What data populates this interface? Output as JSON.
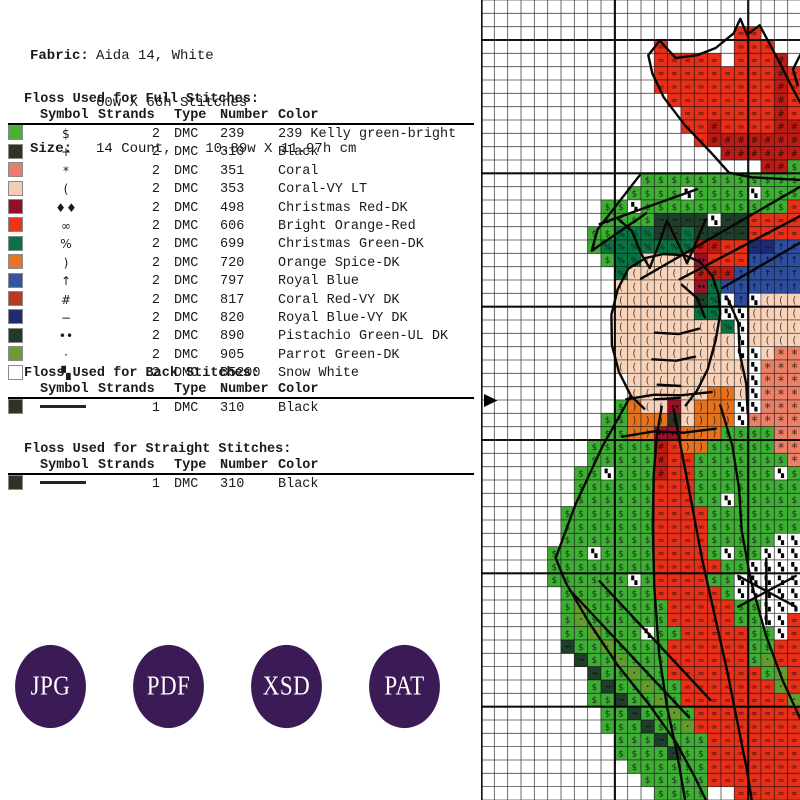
{
  "fabric": {
    "label": "Fabric:",
    "value1": "Aida 14, White",
    "value2": "60w X 66h Stitches",
    "size_label": "Size:",
    "size_value": "14 Count,    10.89w X 11.97h cm"
  },
  "full_stitches": {
    "title": "Floss Used for Full Stitches:",
    "headers": [
      "Symbol",
      "Strands",
      "Type",
      "Number",
      "Color"
    ],
    "rows": [
      {
        "swatch": "#4caf32",
        "symbol": "$",
        "strands": "2",
        "type": "DMC",
        "number": "239",
        "color": "239 Kelly green-bright"
      },
      {
        "swatch": "#2d3424",
        "symbol": "+",
        "strands": "2",
        "type": "DMC",
        "number": "310",
        "color": "Black"
      },
      {
        "swatch": "#e87f6d",
        "symbol": "*",
        "strands": "2",
        "type": "DMC",
        "number": "351",
        "color": "Coral"
      },
      {
        "swatch": "#f6cdb4",
        "symbol": "(",
        "strands": "2",
        "type": "DMC",
        "number": "353",
        "color": "Coral-VY LT"
      },
      {
        "swatch": "#8f1029",
        "symbol": "♦♦",
        "strands": "2",
        "type": "DMC",
        "number": "498",
        "color": "Christmas Red-DK"
      },
      {
        "swatch": "#e8351c",
        "symbol": "∞",
        "strands": "2",
        "type": "DMC",
        "number": "606",
        "color": "Bright Orange-Red"
      },
      {
        "swatch": "#0a7346",
        "symbol": "%",
        "strands": "2",
        "type": "DMC",
        "number": "699",
        "color": "Christmas Green-DK"
      },
      {
        "swatch": "#e2752c",
        "symbol": ")",
        "strands": "2",
        "type": "DMC",
        "number": "720",
        "color": "Orange Spice-DK"
      },
      {
        "swatch": "#36549f",
        "symbol": "↑",
        "strands": "2",
        "type": "DMC",
        "number": "797",
        "color": "Royal Blue"
      },
      {
        "swatch": "#bb3a24",
        "symbol": "#",
        "strands": "2",
        "type": "DMC",
        "number": "817",
        "color": "Coral Red-VY DK"
      },
      {
        "swatch": "#222a72",
        "symbol": "−",
        "strands": "2",
        "type": "DMC",
        "number": "820",
        "color": "Royal Blue-VY DK"
      },
      {
        "swatch": "#1d3b26",
        "symbol": "••",
        "strands": "2",
        "type": "DMC",
        "number": "890",
        "color": "Pistachio Green-UL DK"
      },
      {
        "swatch": "#6a9e35",
        "symbol": "·",
        "strands": "2",
        "type": "DMC",
        "number": "905",
        "color": "Parrot Green-DK"
      },
      {
        "swatch": "#ffffff",
        "symbol": "▚",
        "strands": "2",
        "type": "DMC",
        "number": "B5200",
        "color": "Snow White"
      }
    ]
  },
  "back_stitches": {
    "title": "Floss Used for Back Stitches:",
    "headers": [
      "Symbol",
      "Strands",
      "Type",
      "Number",
      "Color"
    ],
    "rows": [
      {
        "swatch": "#2d3424",
        "symbol": "backstitch-line",
        "strands": "1",
        "type": "DMC",
        "number": "310",
        "color": "Black"
      }
    ]
  },
  "straight_stitches": {
    "title": "Floss Used for Straight Stitches:",
    "headers": [
      "Symbol",
      "Strands",
      "Type",
      "Number",
      "Color"
    ],
    "rows": [
      {
        "swatch": "#2d3424",
        "symbol": "backstitch-line",
        "strands": "1",
        "type": "DMC",
        "number": "310",
        "color": "Black"
      }
    ]
  },
  "buttons": [
    {
      "label": "JPG"
    },
    {
      "label": "PDF"
    },
    {
      "label": "XSD"
    },
    {
      "label": "PAT"
    }
  ],
  "accent_color": "#3a1b55",
  "chart": {
    "palette": {
      "K": {
        "hex": "#3fae35",
        "symbol": "$",
        "floss": "239"
      },
      "B": {
        "hex": "#2d3424",
        "symbol": "+",
        "floss": "310"
      },
      "C": {
        "hex": "#ec8168",
        "symbol": "*",
        "floss": "351"
      },
      "L": {
        "hex": "#f8d2b9",
        "symbol": "(",
        "floss": "353"
      },
      "R": {
        "hex": "#991129",
        "symbol": "♦♦",
        "floss": "498"
      },
      "O": {
        "hex": "#e73019",
        "symbol": "∞",
        "floss": "606"
      },
      "G": {
        "hex": "#0a7343",
        "symbol": "%",
        "floss": "699"
      },
      "S": {
        "hex": "#e4721f",
        "symbol": ")",
        "floss": "720"
      },
      "U": {
        "hex": "#2d4d9e",
        "symbol": "↑",
        "floss": "797"
      },
      "H": {
        "hex": "#bc1c13",
        "symbol": "#",
        "floss": "817"
      },
      "D": {
        "hex": "#1d2b77",
        "symbol": "−",
        "floss": "820"
      },
      "P": {
        "hex": "#1e3e2a",
        "symbol": "••",
        "floss": "890"
      },
      "V": {
        "hex": "#639c2e",
        "symbol": "·",
        "floss": "905"
      },
      "W": {
        "hex": "#ffffff",
        "symbol": "▚",
        "floss": "B5200"
      }
    },
    "grid": [
      "........................",
      "........................",
      "...................OO...",
      ".............O.....OOO..",
      ".............OOOOO.OOOH.",
      ".............OOOOOOOOOHO",
      ".............OOOOOOOOOHO",
      "..............OOOOOOOOHO",
      "...............OOOOOOOHO",
      "...............OOHOOOOHH",
      "................OHHHHHHH",
      "..................HHHHHH",
      ".....................HHK",
      "............KKKKKKKKKKKK",
      "...........KKKKWKKKKWKKK",
      ".........KKWKKKKKKKKKKKO",
      ".........KKKKPPPPWPPOOOO",
      "........KKGGGPPGPPPPOOOO",
      "........KGGGGGGGHHOODDUU",
      ".........KGGLLLLROOOUUUU",
      "..........GLLLLLHHHUUUUU",
      "..........LLLLLLRGUUUUUU",
      "..........LLLLLLPGWUWLLL",
      "..........LLLLLLGGWWLLLL",
      "..........LLLLLLLLGWLLLL",
      "..........LLLLLLLLLWLLLL",
      "..........LLLLLLLLLWWLCC",
      "..........LLLLLLLLLLWCCC",
      "...........LLLLLLLLLWCCC",
      "...........LLLLLLSSLWCCC",
      "..........KSLLRLSSSWWCCC",
      ".........KKSSSBLSSSWCCCC",
      ".........KKSSRRSSSKKKKCC",
      "........KKKKKHOSSKKKKKCC",
      "........KKKKKHOOKKKKKKKC",
      ".......KKWKKKHOOKKKKKKWK",
      ".......KKKKKKOOOKKKKKKKK",
      ".......KKKKKKOOOKKWKKKKK",
      "......KKKKKKKOOOOKKKKKKK",
      "......KKKKKKKOOOOKKKKKKK",
      "......KKKKKKKOOOOKKKKKWW",
      ".....KKKWKKKKOOOOKWKKWWW",
      ".....KKKKKKKKOOOOOKKWWWW",
      ".....KKKKKKWKOOOOKKWWWWW",
      "......KKKKKKKOOOOOKWWWWW",
      "......KVKKKKKKOOOOOKKWWW",
      "......KVKKKKKKOOOOOKKWWO",
      "......KKVKKKWKKOOOOOKKWO",
      "......PKKVKKKKOOOOOOKKOO",
      ".......PKKVKKKOOOOOOKVOO",
      "........PKKVKKOOOOOOOKVO",
      "........KPKKVKKOOOOOOOVO",
      "........KKPKKVKOOOOOOOOV",
      ".........KKPKKVKOOOOOOOO",
      ".........KKKPKKVOOOOOOOO",
      "..........KKKPKKKOOOOOOO",
      "..........KKKKPKKOOOOOOO",
      "...........KKKKKKOOOOOOO",
      "............KKKKKOOOOOOO",
      ".............KKKK..OOOOO"
    ],
    "backstitch": [
      [
        [
          13.4,
          3.05
        ],
        [
          12.55,
          4.15
        ],
        [
          12.85,
          5.5
        ],
        [
          13.7,
          7.3
        ],
        [
          15.3,
          9.4
        ],
        [
          17.3,
          11.5
        ],
        [
          18.6,
          12.95
        ]
      ],
      [
        [
          13.4,
          3.05
        ],
        [
          14.6,
          4.35
        ],
        [
          16.2,
          4.15
        ],
        [
          17.6,
          3.6
        ],
        [
          18.95,
          2.5
        ],
        [
          19.45,
          1.4
        ],
        [
          19.95,
          2.6
        ],
        [
          20.9,
          1.9
        ],
        [
          21.6,
          3.2
        ],
        [
          22.45,
          4.8
        ],
        [
          23.3,
          6.5
        ],
        [
          23.95,
          7.7
        ]
      ],
      [
        [
          18.6,
          12.95
        ],
        [
          20.3,
          13.3
        ],
        [
          22.2,
          13.4
        ],
        [
          23.95,
          13.5
        ]
      ],
      [
        [
          23.95,
          4.1
        ],
        [
          23.4,
          5.2
        ],
        [
          23.75,
          6.4
        ]
      ],
      [
        [
          11.9,
          13.15
        ],
        [
          8.75,
          17.2
        ],
        [
          8.3,
          18.8
        ],
        [
          12.4,
          16.0
        ]
      ],
      [
        [
          8.9,
          16.8
        ],
        [
          16.2,
          14.2
        ]
      ],
      [
        [
          10.2,
          16.35
        ],
        [
          11.3,
          17.3
        ],
        [
          12.05,
          19.1
        ],
        [
          12.65,
          20.1
        ],
        [
          13.35,
          18.3
        ],
        [
          13.95,
          16.55
        ],
        [
          14.85,
          18.4
        ],
        [
          15.45,
          19.75
        ],
        [
          16.25,
          17.9
        ],
        [
          16.85,
          16.45
        ]
      ],
      [
        [
          12.0,
          20.9
        ],
        [
          23.95,
          14.0
        ]
      ],
      [
        [
          14.9,
          20.95
        ],
        [
          23.95,
          16.2
        ]
      ],
      [
        [
          18.1,
          21.6
        ],
        [
          23.95,
          18.2
        ]
      ],
      [
        [
          12.35,
          19.35
        ],
        [
          11.05,
          20.15
        ],
        [
          10.25,
          21.7
        ],
        [
          9.78,
          23.6
        ],
        [
          9.82,
          25.9
        ],
        [
          10.35,
          27.9
        ],
        [
          11.25,
          29.7
        ],
        [
          12.25,
          30.65
        ]
      ],
      [
        [
          12.35,
          19.35
        ],
        [
          13.7,
          19.05
        ],
        [
          15.3,
          19.15
        ],
        [
          16.45,
          19.65
        ],
        [
          17.35,
          20.7
        ],
        [
          17.8,
          22.0
        ],
        [
          17.95,
          23.5
        ],
        [
          17.6,
          25.5
        ],
        [
          17.0,
          27.7
        ],
        [
          16.2,
          29.3
        ],
        [
          15.35,
          30.4
        ]
      ],
      [
        [
          13.05,
          24.95
        ],
        [
          14.85,
          25.05
        ],
        [
          16.35,
          24.65
        ]
      ],
      [
        [
          12.85,
          26.95
        ],
        [
          14.65,
          27.05
        ],
        [
          16.05,
          26.75
        ]
      ],
      [
        [
          13.25,
          28.85
        ],
        [
          14.95,
          28.95
        ]
      ],
      [
        [
          15.05,
          21.35
        ],
        [
          16.2,
          22.35
        ],
        [
          16.8,
          23.8
        ]
      ],
      [
        [
          13.55,
          30.5
        ],
        [
          13.2,
          32.6
        ],
        [
          12.95,
          35.6
        ],
        [
          12.88,
          39.5
        ],
        [
          13.0,
          44.0
        ],
        [
          13.35,
          49.0
        ],
        [
          13.95,
          53.0
        ],
        [
          14.7,
          56.5
        ],
        [
          15.3,
          59.97
        ]
      ],
      [
        [
          14.45,
          30.7
        ],
        [
          15.0,
          33.6
        ],
        [
          15.75,
          37.5
        ],
        [
          16.6,
          42.0
        ],
        [
          17.6,
          46.5
        ],
        [
          18.5,
          50.5
        ],
        [
          19.3,
          54.5
        ],
        [
          19.9,
          57.5
        ],
        [
          20.3,
          59.97
        ]
      ],
      [
        [
          10.9,
          29.95
        ],
        [
          13.0,
          29.6
        ],
        [
          15.0,
          29.65
        ],
        [
          17.3,
          29.4
        ]
      ],
      [
        [
          10.6,
          32.75
        ],
        [
          13.0,
          32.35
        ],
        [
          15.2,
          32.45
        ],
        [
          17.6,
          32.15
        ]
      ],
      [
        [
          11.2,
          29.75
        ],
        [
          9.1,
          33.5
        ],
        [
          7.1,
          37.8
        ],
        [
          5.6,
          41.85
        ],
        [
          6.35,
          43.7
        ],
        [
          8.05,
          46.6
        ],
        [
          10.25,
          49.9
        ],
        [
          12.65,
          52.9
        ],
        [
          14.65,
          55.7
        ],
        [
          16.05,
          58.3
        ],
        [
          16.85,
          59.97
        ]
      ],
      [
        [
          17.95,
          30.4
        ],
        [
          18.85,
          33.4
        ],
        [
          19.35,
          36.6
        ],
        [
          19.55,
          39.8
        ],
        [
          20.25,
          43.6
        ],
        [
          21.35,
          47.6
        ],
        [
          22.65,
          51.1
        ],
        [
          23.95,
          53.9
        ]
      ],
      [
        [
          6.7,
          44.3
        ],
        [
          15.6,
          53.8
        ]
      ],
      [
        [
          8.9,
          43.6
        ],
        [
          17.2,
          52.5
        ]
      ],
      [
        [
          21.4,
          41.9
        ],
        [
          21.4,
          46.8
        ]
      ],
      [
        [
          19.3,
          43.2
        ],
        [
          23.6,
          45.5
        ]
      ],
      [
        [
          19.3,
          45.5
        ],
        [
          23.6,
          43.2
        ]
      ],
      [
        [
          18.5,
          22.4
        ],
        [
          19.3,
          24.2
        ],
        [
          19.4,
          26.5
        ],
        [
          19.9,
          28.8
        ],
        [
          20.0,
          31.0
        ]
      ],
      [
        [
          13.0,
          29.95
        ],
        [
          14.9,
          29.85
        ]
      ]
    ],
    "center_marker": "left-row-arrow"
  }
}
